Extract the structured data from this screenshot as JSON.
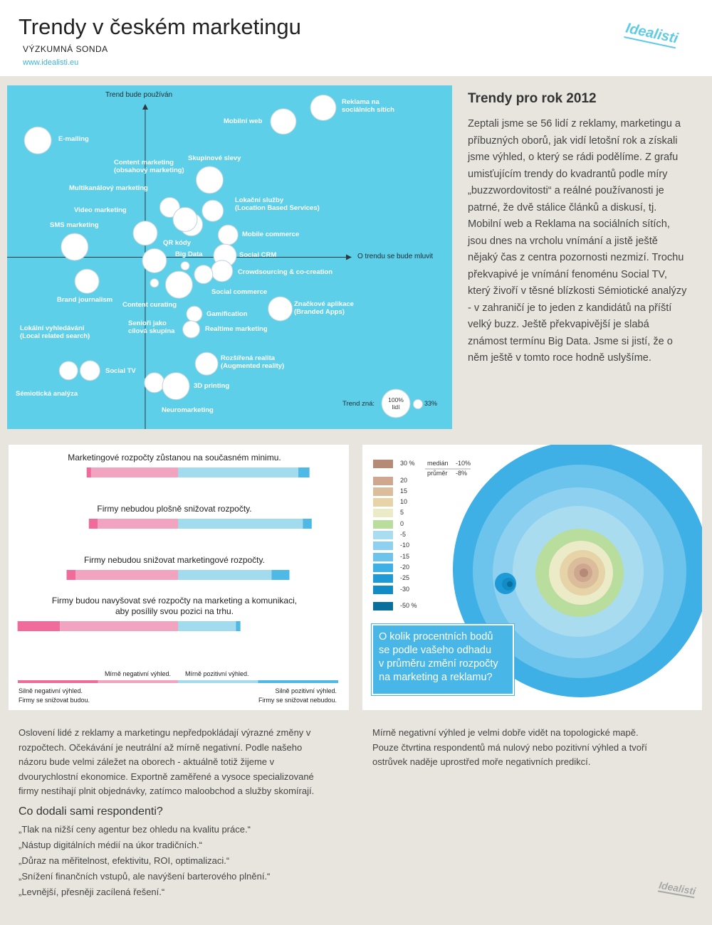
{
  "header": {
    "title": "Trendy v českém marketingu",
    "subtitle": "VÝZKUMNÁ SONDA",
    "url": "www.idealisti.eu",
    "logo": "Idealisti"
  },
  "chart_data": [
    {
      "type": "bubble",
      "y_label": "Trend bude používán",
      "x_label": "O trendu se bude mluvit",
      "xlim": [
        -45,
        100
      ],
      "ylim": [
        -100,
        100
      ],
      "background": "#5dcfe8",
      "color": "#ffffff",
      "labels": [
        "Reklama na\nsociálních sítích",
        "Mobilní web",
        "E-mailing",
        "Skupinové slevy",
        "Content marketing\n(obsahový marketing)",
        "Multikanálový marketing",
        "Video marketing",
        "Lokační služby\n(Location Based Services)",
        "SMS marketing",
        "QR kódy",
        "Mobile commerce",
        "Big Data",
        "Social CRM",
        "Crowdsourcing & co-creation",
        "Social commerce",
        "Brand journalism",
        "Content curating",
        "Lokální vyhledávání\n(Local related search)",
        "Senioři jako\ncílová skupina",
        "Gamification",
        "Realtime marketing",
        "Značkové aplikace\n(Branded Apps)",
        "Rozšířená realita\n(Augmented reality)",
        "Sémiotická analýza",
        "Social TV",
        "Neuromarketing",
        "3D printing"
      ],
      "x": [
        58,
        45,
        -35,
        21,
        15,
        8,
        13,
        22,
        -23,
        0,
        27,
        13,
        26,
        25,
        19,
        -19,
        3,
        11,
        3,
        16,
        15,
        44,
        20,
        -25,
        -18,
        3,
        10
      ],
      "values": [
        87,
        79,
        68,
        45,
        19,
        29,
        22,
        27,
        6,
        14,
        13,
        -5,
        1,
        -8,
        -10,
        -14,
        -15,
        -16,
        -2,
        -33,
        -42,
        -30,
        -62,
        -66,
        -66,
        -73,
        -75
      ],
      "sizes": [
        90,
        90,
        95,
        95,
        80,
        70,
        85,
        75,
        95,
        85,
        70,
        30,
        80,
        75,
        65,
        85,
        30,
        95,
        85,
        55,
        60,
        85,
        80,
        65,
        70,
        70,
        95
      ],
      "size_legend": {
        "title": "Trend zná:",
        "items": [
          {
            "value": 100,
            "label": "100%\nlidí"
          },
          {
            "value": 33,
            "label": "33%"
          }
        ]
      }
    },
    {
      "type": "diverging-bar",
      "categories": [
        "Marketingové rozpočty zůstanou na současném minimu.",
        "Firmy nebudou plošně snižovat rozpočty.",
        "Firmy nebudou snižovat marketingové rozpočty.",
        "Firmy budou navyšovat své rozpočty na marketing a komunikaci,\naby posílily svou pozici na trhu."
      ],
      "series": [
        {
          "name": "Silně negativní výhled.\nFirmy se snižovat budou.",
          "color": "#f06b99",
          "values": [
            2,
            4,
            4,
            19
          ]
        },
        {
          "name": "Mírně negativní výhled.",
          "color": "#f2a3c0",
          "values": [
            39,
            36,
            46,
            53
          ]
        },
        {
          "name": "Mírně pozitivní výhled.",
          "color": "#a3dbee",
          "values": [
            54,
            56,
            42,
            26
          ]
        },
        {
          "name": "Silně pozitivní výhled.\nFirmy se snižovat nebudou.",
          "color": "#4eb9e6",
          "values": [
            5,
            4,
            8,
            2
          ]
        }
      ]
    }
  ],
  "intro": {
    "title": "Trendy pro rok 2012",
    "text": "Zeptali jsme se 56 lidí z reklamy, marketingu a příbuzných oborů, jak vidí letošní rok a získali jsme výhled, o který se rádi podělíme. Z grafu umisťujícím trendy do kvadrantů podle míry „buzzwordovitosti“ a reálné používanosti je patrné, že dvě stálice článků a diskusí, tj. Mobilní web a Reklama na sociálních sítích, jsou dnes na vrcholu vnímání a jistě ještě nějaký čas z centra pozornosti nezmizí. Trochu překvapivé je vnímání fenoménu Social TV, který živoří v těsné blízkosti Sémiotické analýzy - v zahraničí je to jeden z kandidátů na příští velký buzz. Ještě překvapivější je slabá známost termínu Big Data. Jsme si jistí, že o něm ještě v tomto roce hodně uslyšíme."
  },
  "topo": {
    "levels": [
      {
        "label": "30 %",
        "color": "#b58b78"
      },
      {
        "label": "20",
        "color": "#cfa690"
      },
      {
        "label": "15",
        "color": "#dbbd9c"
      },
      {
        "label": "10",
        "color": "#e6d3a8"
      },
      {
        "label": "5",
        "color": "#ecebc7"
      },
      {
        "label": "0",
        "color": "#b9dd9d"
      },
      {
        "label": "-5",
        "color": "#a9dcef"
      },
      {
        "label": "-10",
        "color": "#8ed0ef"
      },
      {
        "label": "-15",
        "color": "#6cc4ec"
      },
      {
        "label": "-20",
        "color": "#3fb0e6"
      },
      {
        "label": "-25",
        "color": "#1e9ad6"
      },
      {
        "label": "-30",
        "color": "#118cc6"
      },
      {
        "label": "-50 %",
        "color": "#0a6f9a"
      }
    ],
    "stats": [
      {
        "name": "medián",
        "value": "-10%"
      },
      {
        "name": "průměr",
        "value": "-8%"
      }
    ],
    "question": "O kolik procentních bodů\nse podle vašeho odhadu\nv průměru změní rozpočty\nna marketing a reklamu?"
  },
  "budget_text": "Oslovení lidé z reklamy a marketingu nepředpokládají výrazné změny v rozpočtech. Očekávání je neutrální až mírně negativní. Podle našeho názoru bude velmi záležet na oborech - aktuálně totiž žijeme v dvourychlostní ekonomice. Exportně zaměřené a vysoce specializované firmy nestíhají plnit objednávky, zatímco maloobchod a služby skomírají.",
  "respondents": {
    "title": "Co dodali sami respondenti?",
    "quotes": [
      "„Tlak na nižší ceny agentur bez ohledu na kvalitu práce.“",
      "„Nástup digitálních médií na úkor tradičních.“",
      "„Důraz na měřitelnost, efektivitu, ROI, optimalizaci.“",
      "„Snížení finančních vstupů, ale navýšení barterového plnění.“",
      "„Levnější, přesněji zacílená řešení.“"
    ]
  },
  "topo_text": "Mírně negativní výhled je velmi dobře vidět na topologické mapě. Pouze čtvrtina respondentů má nulový nebo pozitivní výhled a tvoří ostrůvek naděje uprostřed moře negativních predikcí.",
  "footer": {
    "logo": "Idealisti"
  }
}
